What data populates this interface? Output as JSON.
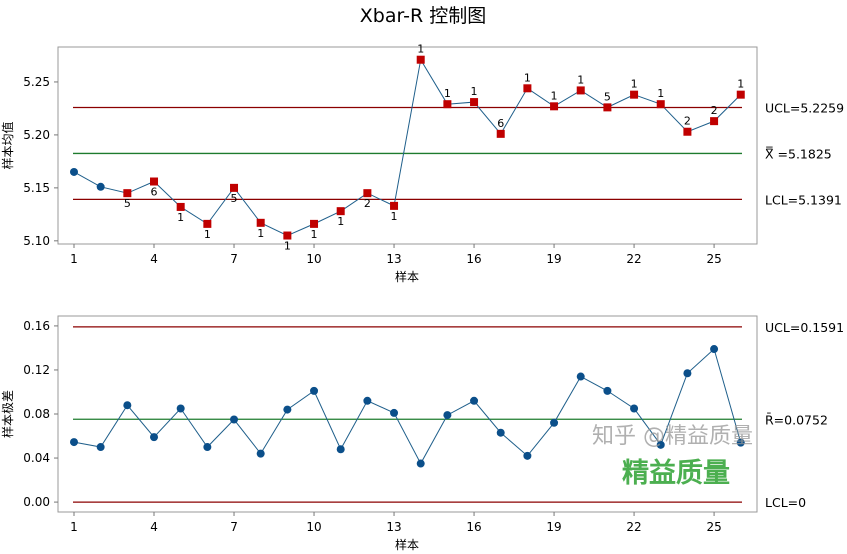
{
  "title": "Xbar-R 控制图",
  "watermark": {
    "zhihu": "知乎 @精益质量",
    "brand": "精益质量"
  },
  "colors": {
    "line": "#1f5f8b",
    "point_ok": "#0b4f8a",
    "point_flag": "#c00000",
    "limit": "#8b0000",
    "center": "#1e7b2e",
    "frame": "#999999"
  },
  "chart_data": [
    {
      "type": "line",
      "ylabel": "样本均值",
      "xlabel": "样本",
      "ylim": [
        5.097,
        5.283
      ],
      "yticks": [
        "5.10",
        "5.15",
        "5.20",
        "5.25"
      ],
      "xticks": [
        "1",
        "4",
        "7",
        "10",
        "13",
        "16",
        "19",
        "22",
        "25"
      ],
      "x": [
        1,
        2,
        3,
        4,
        5,
        6,
        7,
        8,
        9,
        10,
        11,
        12,
        13,
        14,
        15,
        16,
        17,
        18,
        19,
        20,
        21,
        22,
        23,
        24,
        25,
        26
      ],
      "values": [
        5.165,
        5.151,
        5.145,
        5.156,
        5.132,
        5.116,
        5.15,
        5.117,
        5.105,
        5.116,
        5.128,
        5.145,
        5.133,
        5.271,
        5.229,
        5.231,
        5.201,
        5.244,
        5.227,
        5.242,
        5.226,
        5.238,
        5.229,
        5.203,
        5.213,
        5.238
      ],
      "flags": [
        "",
        "",
        "5",
        "6",
        "1",
        "1",
        "5",
        "1",
        "1",
        "1",
        "1",
        "2",
        "1",
        "1",
        "1",
        "1",
        "6",
        "1",
        "1",
        "1",
        "5",
        "1",
        "1",
        "2",
        "2",
        "1"
      ],
      "limits": {
        "ucl": 5.2259,
        "center": 5.1825,
        "lcl": 5.1391
      },
      "limit_labels": {
        "ucl": "UCL=5.2259",
        "center": "X̿ =5.1825",
        "lcl": "LCL=5.1391"
      }
    },
    {
      "type": "line",
      "ylabel": "样本极差",
      "xlabel": "样本",
      "ylim": [
        -0.009,
        0.169
      ],
      "yticks": [
        "0.00",
        "0.04",
        "0.08",
        "0.12",
        "0.16"
      ],
      "xticks": [
        "1",
        "4",
        "7",
        "10",
        "13",
        "16",
        "19",
        "22",
        "25"
      ],
      "x": [
        1,
        2,
        3,
        4,
        5,
        6,
        7,
        8,
        9,
        10,
        11,
        12,
        13,
        14,
        15,
        16,
        17,
        18,
        19,
        20,
        21,
        22,
        23,
        24,
        25,
        26
      ],
      "values": [
        0.0545,
        0.05,
        0.088,
        0.059,
        0.085,
        0.05,
        0.075,
        0.044,
        0.084,
        0.101,
        0.048,
        0.092,
        0.081,
        0.035,
        0.079,
        0.092,
        0.063,
        0.042,
        0.072,
        0.114,
        0.101,
        0.085,
        0.052,
        0.117,
        0.139,
        0.054
      ],
      "limits": {
        "ucl": 0.1591,
        "center": 0.0752,
        "lcl": 0
      },
      "limit_labels": {
        "ucl": "UCL=0.1591",
        "center": "R̄=0.0752",
        "lcl": "LCL=0"
      }
    }
  ]
}
